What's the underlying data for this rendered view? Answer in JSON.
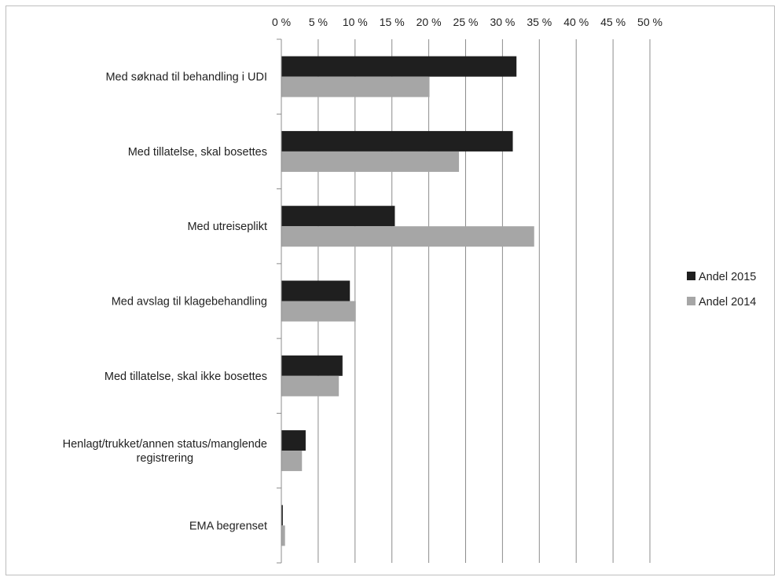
{
  "chart_data": {
    "type": "bar",
    "orientation": "horizontal",
    "title": "",
    "xlabel": "",
    "ylabel": "",
    "xlim": [
      0,
      50
    ],
    "x_ticks": [
      "0 %",
      "5 %",
      "10 %",
      "15 %",
      "20 %",
      "25 %",
      "30 %",
      "35 %",
      "40 %",
      "45 %",
      "50 %"
    ],
    "x_axis_position": "top",
    "grid": true,
    "legend_position": "right",
    "categories": [
      [
        "Med søknad til behandling i UDI"
      ],
      [
        "Med tillatelse, skal bosettes"
      ],
      [
        "Med utreiseplikt"
      ],
      [
        "Med avslag til klagebehandling"
      ],
      [
        "Med tillatelse, skal ikke bosettes"
      ],
      [
        "Henlagt/trukket/annen status/manglende",
        "registrering"
      ],
      [
        "EMA begrenset"
      ]
    ],
    "series": [
      {
        "name": "Andel 2015",
        "color": "#1f1f1f",
        "values": [
          31.9,
          31.4,
          15.4,
          9.3,
          8.3,
          3.3,
          0.2
        ]
      },
      {
        "name": "Andel 2014",
        "color": "#a6a6a6",
        "values": [
          20.1,
          24.1,
          34.3,
          10.1,
          7.8,
          2.8,
          0.5
        ]
      }
    ]
  }
}
